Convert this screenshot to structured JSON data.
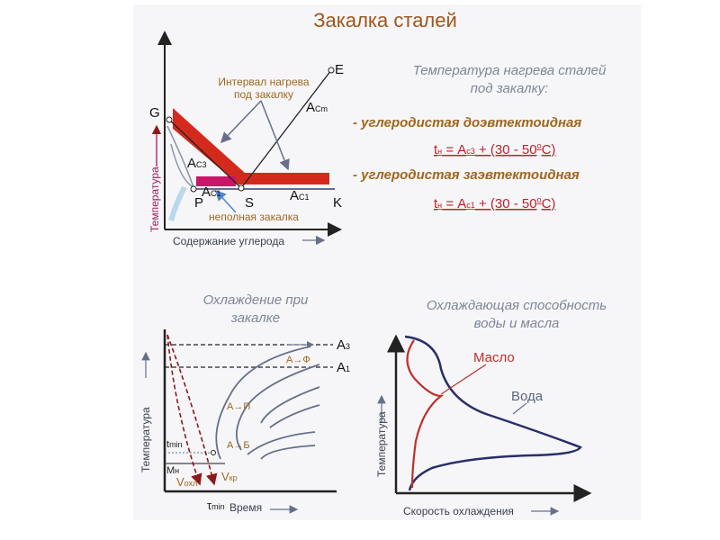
{
  "title": "Закалка сталей",
  "phase_diagram": {
    "points": [
      "G",
      "E",
      "P",
      "S",
      "K"
    ],
    "lines": [
      {
        "main": "A",
        "sub": "Cm"
      },
      {
        "main": "A",
        "sub": "C3"
      },
      {
        "main": "A",
        "sub": "C1"
      },
      {
        "main": "A",
        "sub": "C1"
      }
    ],
    "heating_interval": [
      "Интервал нагрева",
      "под закалку"
    ],
    "partial_quench": "неполная закалка",
    "y_axis": "Температура",
    "x_axis": "Содержание углерода"
  },
  "heating_text": {
    "heading": [
      "Температура нагрева сталей",
      "под закалку:"
    ],
    "items": [
      {
        "label": "- углеродистая доэвтектоидная",
        "formula": [
          "t",
          "н",
          " = A",
          "с3",
          " + (30 - 50",
          "o",
          "C)"
        ]
      },
      {
        "label": "- углеродистая заэвтектоидная",
        "formula": [
          "t",
          "н",
          " = A",
          "с1",
          " + (30 - 50",
          "o",
          "C)"
        ]
      }
    ]
  },
  "cooling": {
    "title": [
      "Охлаждение при",
      "закалке"
    ],
    "lines": [
      {
        "main": "A",
        "sub": "3"
      },
      {
        "main": "A",
        "sub": "1"
      }
    ],
    "transformations": [
      "А→Ф",
      "А→П",
      "А→Б"
    ],
    "t_min": {
      "main": "t",
      "sub": "min"
    },
    "m_n": {
      "main": "М",
      "sub": "н"
    },
    "v_cool": {
      "main": "V",
      "sub": "охл"
    },
    "v_crit": {
      "main": "V",
      "sub": "кр"
    },
    "tau_min": {
      "main": "τ",
      "sub": "min"
    },
    "x_axis": "Время",
    "y_axis": "Температура"
  },
  "quenchant": {
    "title": [
      "Охлаждающая способность",
      "воды и масла"
    ],
    "curves": [
      "Масло",
      "Вода"
    ],
    "y_axis": "Температура",
    "x_axis": "Скорость охлаждения"
  }
}
